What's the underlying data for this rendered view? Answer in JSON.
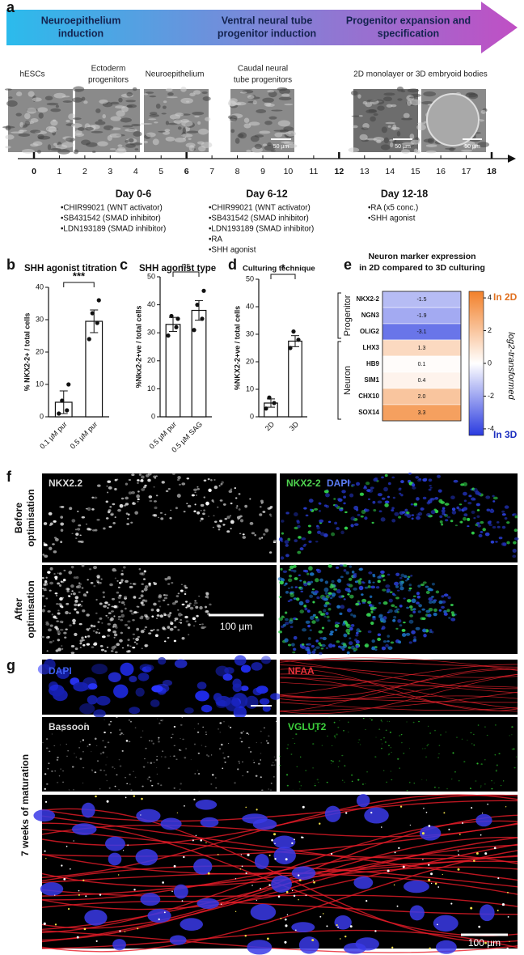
{
  "panel_a": {
    "label": "a",
    "stages": [
      [
        "Neuroepithelium",
        "induction"
      ],
      [
        "Ventral neural tube",
        "progenitor induction"
      ],
      [
        "Progenitor expansion and",
        "specification"
      ]
    ],
    "captions": [
      [
        "hESCs"
      ],
      [
        "Ectoderm",
        "progenitors"
      ],
      [
        "Neuroepithelium"
      ],
      [
        "Caudal neural",
        "tube progenitors"
      ],
      [
        "2D monolayer or 3D embryoid bodies"
      ]
    ],
    "scale_bars": [
      "50 µm",
      "50 µm",
      "50 µm"
    ],
    "days": [
      0,
      1,
      2,
      3,
      4,
      5,
      6,
      7,
      8,
      9,
      10,
      11,
      12,
      13,
      14,
      15,
      16,
      17,
      18
    ],
    "bold_days": [
      0,
      6,
      12,
      18
    ],
    "protocols": [
      {
        "title": "Day 0-6",
        "items": [
          "•CHIR99021 (WNT activator)",
          "•SB431542 (SMAD inhibitor)",
          "•LDN193189 (SMAD inhibitor)"
        ]
      },
      {
        "title": "Day 6-12",
        "items": [
          "•CHIR99021 (WNT activator)",
          "•SB431542 (SMAD inhibitor)",
          "•LDN193189 (SMAD inhibitor)",
          "•RA",
          "•SHH agonist"
        ]
      },
      {
        "title": "Day 12-18",
        "items": [
          "•RA (x5 conc.)",
          "•SHH agonist"
        ]
      }
    ]
  },
  "chart_data": [
    {
      "type": "bar",
      "label": "b",
      "title": "SHH agonist titration",
      "ylabel": "% NKX2-2+ / total cells",
      "categories": [
        "0.1 µM pur",
        "0.5 µM pur"
      ],
      "values": [
        4.5,
        29.5
      ],
      "errors": [
        3.5,
        3.5
      ],
      "points": [
        [
          1,
          2,
          5,
          10
        ],
        [
          24,
          29,
          32,
          36
        ]
      ],
      "ylim": [
        0,
        40
      ],
      "yticks": [
        0,
        10,
        20,
        30,
        40
      ],
      "significance": "***"
    },
    {
      "type": "bar",
      "label": "c",
      "title": "SHH agonist type",
      "ylabel": "%Nkx2-2+ve / total cells",
      "categories": [
        "0.5 µM pur",
        "0.5 µM SAG"
      ],
      "values": [
        33,
        38
      ],
      "errors": [
        2.5,
        3.5
      ],
      "points": [
        [
          29,
          32,
          36,
          35
        ],
        [
          31,
          35,
          40,
          45
        ]
      ],
      "ylim": [
        0,
        50
      ],
      "yticks": [
        0,
        10,
        20,
        30,
        40,
        50
      ],
      "significance": "ns"
    },
    {
      "type": "bar",
      "label": "d",
      "title": "Culturing technique",
      "ylabel": "%NKX2-2+ve / total cells",
      "categories": [
        "2D",
        "3D"
      ],
      "values": [
        5,
        27.5
      ],
      "errors": [
        1.5,
        2
      ],
      "points": [
        [
          3,
          5,
          7
        ],
        [
          25,
          28,
          31
        ]
      ],
      "ylim": [
        0,
        50
      ],
      "yticks": [
        0,
        10,
        20,
        30,
        40,
        50
      ],
      "significance": "*"
    },
    {
      "type": "heatmap",
      "label": "e",
      "title": [
        "Neuron marker expression",
        "in 2D compared to 3D culturing"
      ],
      "rows": [
        "NKX2-2",
        "NGN3",
        "OLIG2",
        "LHX3",
        "HB9",
        "SIM1",
        "CHX10",
        "SOX14"
      ],
      "values": [
        -1.5,
        -1.9,
        -3.1,
        1.3,
        0.1,
        0.4,
        2.0,
        3.3
      ],
      "value_labels": [
        "-1.5",
        "-1.9",
        "-3.1",
        "1.3",
        "0.1",
        "0.4",
        "2.0",
        "3.3"
      ],
      "groups": [
        {
          "name": "Progenitor",
          "rows": [
            0,
            2
          ]
        },
        {
          "name": "Neuron",
          "rows": [
            3,
            7
          ]
        }
      ],
      "clim": [
        -4.4,
        4.4
      ],
      "cticks": [
        4,
        2,
        0,
        -2,
        -4
      ],
      "colormap": [
        "#2a3be0",
        "#ffffff",
        "#f2802a"
      ],
      "ends": [
        "In 2D",
        "In 3D"
      ],
      "colorbar_label": "log2-transformed"
    }
  ],
  "panel_f": {
    "label": "f",
    "rows": [
      [
        "Before",
        "optimisation"
      ],
      [
        "After",
        "optimisation"
      ]
    ],
    "left_channel": "NKX2.2",
    "right_channels": [
      "NKX2-2",
      "DAPI"
    ],
    "scale_bar": "100 µm"
  },
  "panel_g": {
    "label": "g",
    "side": "7 weeks of maturation",
    "channels": [
      "DAPI",
      "NFAA",
      "Bassoon",
      "VGLUT2"
    ],
    "scale_bar": "100 µm"
  }
}
